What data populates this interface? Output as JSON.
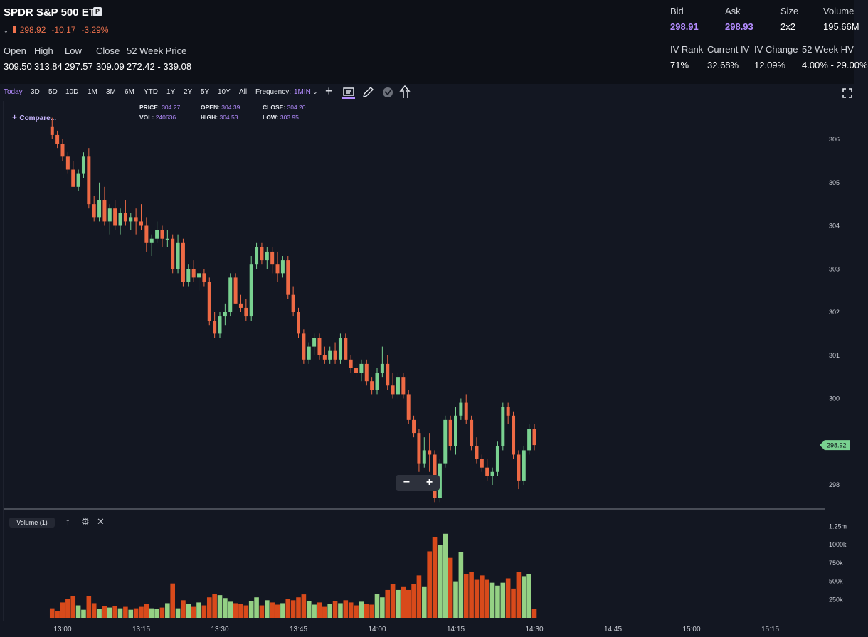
{
  "header": {
    "title": "SPDR S&P 500 ETF",
    "badge": "P",
    "last": "298.92",
    "change": "-10.17",
    "change_pct": "-3.29%",
    "stats": [
      {
        "label": "Open",
        "value": "309.50"
      },
      {
        "label": "High",
        "value": "313.84"
      },
      {
        "label": "Low",
        "value": "297.57"
      },
      {
        "label": "Close",
        "value": "309.09"
      },
      {
        "label": "52 Week Price",
        "value": "272.42 - 339.08"
      }
    ],
    "quote": [
      {
        "label": "Bid",
        "value": "298.91"
      },
      {
        "label": "Ask",
        "value": "298.93"
      },
      {
        "label": "Size",
        "value": "2x2"
      },
      {
        "label": "Volume",
        "value": "195.66M"
      }
    ],
    "iv": [
      {
        "label": "IV Rank",
        "value": "71%"
      },
      {
        "label": "Current IV",
        "value": "32.68%"
      },
      {
        "label": "IV Change",
        "value": "12.09%"
      },
      {
        "label": "52 Week HV",
        "value": "4.00% - 29.00%"
      }
    ]
  },
  "toolbar": {
    "ranges": [
      "Today",
      "3D",
      "5D",
      "10D",
      "1M",
      "3M",
      "6M",
      "YTD",
      "1Y",
      "2Y",
      "5Y",
      "10Y",
      "All"
    ],
    "active_range": "Today",
    "frequency_label": "Frequency:",
    "frequency_value": "1MIN",
    "icons": [
      "crosshair-icon",
      "chart-type-icon",
      "draw-pencil-icon",
      "indicator-icon",
      "share-icon",
      "fullscreen-icon"
    ]
  },
  "legend": {
    "compare": "Compare...",
    "price_label": "PRICE:",
    "price": "304.27",
    "open_label": "OPEN:",
    "open": "304.39",
    "close_label": "CLOSE:",
    "close": "304.20",
    "vol_label": "VOL:",
    "vol": "240636",
    "high_label": "HIGH:",
    "high": "304.53",
    "low_label": "LOW:",
    "low": "303.95"
  },
  "volume_panel": {
    "label": "Volume (1)"
  },
  "colors": {
    "up": "#79d190",
    "down": "#ee6a45",
    "vol_up": "#94d184",
    "vol_down": "#d84a1b",
    "accent": "#b48cff",
    "background": "#131722"
  },
  "chart_data": {
    "type": "candlestick",
    "symbol": "SPDR S&P 500 ETF",
    "interval": "1MIN",
    "last_price_label": "298.92",
    "price_axis": {
      "ticks": [
        306,
        305,
        304,
        303,
        302,
        301,
        300,
        298
      ],
      "range": [
        297.3,
        306.5
      ]
    },
    "volume_axis": {
      "ticks": [
        "1.25m",
        "1000k",
        "750k",
        "500k",
        "250k"
      ],
      "range": [
        0,
        1430000
      ]
    },
    "time_axis": {
      "ticks": [
        "13:00",
        "13:15",
        "13:30",
        "13:45",
        "14:00",
        "14:15",
        "14:30",
        "14:45",
        "15:00",
        "15:15"
      ],
      "start": "12:58",
      "end": "15:21"
    },
    "candles": [
      {
        "t": "12:58",
        "o": 306.3,
        "h": 306.5,
        "l": 306.0,
        "c": 306.1,
        "v": 130000
      },
      {
        "t": "12:59",
        "o": 306.1,
        "h": 306.2,
        "l": 305.8,
        "c": 305.9,
        "v": 90000
      },
      {
        "t": "13:00",
        "o": 305.9,
        "h": 306.0,
        "l": 305.5,
        "c": 305.6,
        "v": 210000
      },
      {
        "t": "13:01",
        "o": 305.6,
        "h": 305.7,
        "l": 305.2,
        "c": 305.3,
        "v": 260000
      },
      {
        "t": "13:02",
        "o": 305.3,
        "h": 305.5,
        "l": 304.9,
        "c": 304.9,
        "v": 300000
      },
      {
        "t": "13:03",
        "o": 304.9,
        "h": 305.3,
        "l": 304.8,
        "c": 305.2,
        "v": 170000
      },
      {
        "t": "13:04",
        "o": 305.2,
        "h": 305.7,
        "l": 305.1,
        "c": 305.6,
        "v": 110000
      },
      {
        "t": "13:05",
        "o": 305.6,
        "h": 305.8,
        "l": 304.4,
        "c": 304.5,
        "v": 300000
      },
      {
        "t": "13:06",
        "o": 304.5,
        "h": 304.7,
        "l": 304.1,
        "c": 304.2,
        "v": 200000
      },
      {
        "t": "13:07",
        "o": 304.2,
        "h": 305.0,
        "l": 304.1,
        "c": 304.6,
        "v": 120000
      },
      {
        "t": "13:08",
        "o": 304.6,
        "h": 304.9,
        "l": 304.0,
        "c": 304.1,
        "v": 160000
      },
      {
        "t": "13:09",
        "o": 304.1,
        "h": 304.5,
        "l": 303.8,
        "c": 304.4,
        "v": 140000
      },
      {
        "t": "13:10",
        "o": 304.4,
        "h": 304.6,
        "l": 303.9,
        "c": 304.0,
        "v": 160000
      },
      {
        "t": "13:11",
        "o": 304.0,
        "h": 304.4,
        "l": 303.8,
        "c": 304.3,
        "v": 130000
      },
      {
        "t": "13:12",
        "o": 304.3,
        "h": 304.6,
        "l": 304.0,
        "c": 304.1,
        "v": 150000
      },
      {
        "t": "13:13",
        "o": 304.1,
        "h": 304.3,
        "l": 303.9,
        "c": 304.2,
        "v": 110000
      },
      {
        "t": "13:14",
        "o": 304.2,
        "h": 304.4,
        "l": 303.8,
        "c": 304.1,
        "v": 130000
      },
      {
        "t": "13:15",
        "o": 304.1,
        "h": 304.5,
        "l": 303.9,
        "c": 304.0,
        "v": 150000
      },
      {
        "t": "13:16",
        "o": 304.0,
        "h": 304.2,
        "l": 303.4,
        "c": 303.6,
        "v": 190000
      },
      {
        "t": "13:17",
        "o": 303.6,
        "h": 303.8,
        "l": 303.3,
        "c": 303.7,
        "v": 130000
      },
      {
        "t": "13:18",
        "o": 303.7,
        "h": 304.1,
        "l": 303.6,
        "c": 303.9,
        "v": 120000
      },
      {
        "t": "13:19",
        "o": 303.9,
        "h": 304.0,
        "l": 303.5,
        "c": 303.7,
        "v": 140000
      },
      {
        "t": "13:20",
        "o": 303.7,
        "h": 303.9,
        "l": 303.5,
        "c": 303.7,
        "v": 200000
      },
      {
        "t": "13:21",
        "o": 303.7,
        "h": 303.8,
        "l": 302.9,
        "c": 303.0,
        "v": 470000
      },
      {
        "t": "13:22",
        "o": 303.0,
        "h": 303.8,
        "l": 302.9,
        "c": 303.6,
        "v": 130000
      },
      {
        "t": "13:23",
        "o": 303.6,
        "h": 303.7,
        "l": 302.6,
        "c": 302.7,
        "v": 240000
      },
      {
        "t": "13:24",
        "o": 302.7,
        "h": 303.1,
        "l": 302.6,
        "c": 303.0,
        "v": 190000
      },
      {
        "t": "13:25",
        "o": 303.0,
        "h": 303.2,
        "l": 302.7,
        "c": 302.8,
        "v": 150000
      },
      {
        "t": "13:26",
        "o": 302.8,
        "h": 302.9,
        "l": 302.5,
        "c": 302.9,
        "v": 210000
      },
      {
        "t": "13:27",
        "o": 302.9,
        "h": 303.0,
        "l": 302.6,
        "c": 302.7,
        "v": 170000
      },
      {
        "t": "13:28",
        "o": 302.7,
        "h": 302.8,
        "l": 301.7,
        "c": 301.8,
        "v": 280000
      },
      {
        "t": "13:29",
        "o": 301.8,
        "h": 302.0,
        "l": 301.4,
        "c": 301.5,
        "v": 330000
      },
      {
        "t": "13:30",
        "o": 301.5,
        "h": 302.0,
        "l": 301.4,
        "c": 301.9,
        "v": 310000
      },
      {
        "t": "13:31",
        "o": 301.9,
        "h": 302.2,
        "l": 301.7,
        "c": 302.0,
        "v": 270000
      },
      {
        "t": "13:32",
        "o": 302.0,
        "h": 302.9,
        "l": 301.9,
        "c": 302.8,
        "v": 220000
      },
      {
        "t": "13:33",
        "o": 302.8,
        "h": 302.9,
        "l": 302.2,
        "c": 302.2,
        "v": 200000
      },
      {
        "t": "13:34",
        "o": 302.2,
        "h": 302.4,
        "l": 302.0,
        "c": 302.1,
        "v": 190000
      },
      {
        "t": "13:35",
        "o": 302.1,
        "h": 302.3,
        "l": 301.8,
        "c": 301.9,
        "v": 170000
      },
      {
        "t": "13:36",
        "o": 301.9,
        "h": 303.3,
        "l": 301.8,
        "c": 303.1,
        "v": 230000
      },
      {
        "t": "13:37",
        "o": 303.1,
        "h": 303.6,
        "l": 303.0,
        "c": 303.5,
        "v": 280000
      },
      {
        "t": "13:38",
        "o": 303.5,
        "h": 303.6,
        "l": 303.1,
        "c": 303.2,
        "v": 170000
      },
      {
        "t": "13:39",
        "o": 303.2,
        "h": 303.5,
        "l": 303.0,
        "c": 303.4,
        "v": 240000
      },
      {
        "t": "13:40",
        "o": 303.4,
        "h": 303.5,
        "l": 302.9,
        "c": 303.1,
        "v": 210000
      },
      {
        "t": "13:41",
        "o": 303.1,
        "h": 303.4,
        "l": 302.7,
        "c": 302.9,
        "v": 180000
      },
      {
        "t": "13:42",
        "o": 302.9,
        "h": 303.3,
        "l": 302.8,
        "c": 303.2,
        "v": 200000
      },
      {
        "t": "13:43",
        "o": 303.2,
        "h": 303.3,
        "l": 302.3,
        "c": 302.4,
        "v": 260000
      },
      {
        "t": "13:44",
        "o": 302.4,
        "h": 302.6,
        "l": 301.9,
        "c": 302.0,
        "v": 240000
      },
      {
        "t": "13:45",
        "o": 302.0,
        "h": 302.1,
        "l": 301.4,
        "c": 301.5,
        "v": 280000
      },
      {
        "t": "13:46",
        "o": 301.5,
        "h": 301.6,
        "l": 300.8,
        "c": 300.9,
        "v": 320000
      },
      {
        "t": "13:47",
        "o": 300.9,
        "h": 301.3,
        "l": 300.8,
        "c": 301.2,
        "v": 230000
      },
      {
        "t": "13:48",
        "o": 301.2,
        "h": 301.5,
        "l": 301.0,
        "c": 301.4,
        "v": 180000
      },
      {
        "t": "13:49",
        "o": 301.4,
        "h": 301.5,
        "l": 300.9,
        "c": 301.0,
        "v": 210000
      },
      {
        "t": "13:50",
        "o": 301.0,
        "h": 301.2,
        "l": 300.8,
        "c": 300.9,
        "v": 150000
      },
      {
        "t": "13:51",
        "o": 300.9,
        "h": 301.2,
        "l": 300.8,
        "c": 301.1,
        "v": 190000
      },
      {
        "t": "13:52",
        "o": 301.1,
        "h": 301.3,
        "l": 300.8,
        "c": 300.9,
        "v": 230000
      },
      {
        "t": "13:53",
        "o": 300.9,
        "h": 301.5,
        "l": 300.8,
        "c": 301.4,
        "v": 200000
      },
      {
        "t": "13:54",
        "o": 301.4,
        "h": 301.5,
        "l": 300.9,
        "c": 300.9,
        "v": 240000
      },
      {
        "t": "13:55",
        "o": 300.9,
        "h": 301.0,
        "l": 300.6,
        "c": 300.7,
        "v": 210000
      },
      {
        "t": "13:56",
        "o": 300.7,
        "h": 300.8,
        "l": 300.5,
        "c": 300.6,
        "v": 170000
      },
      {
        "t": "13:57",
        "o": 300.6,
        "h": 300.9,
        "l": 300.4,
        "c": 300.8,
        "v": 220000
      },
      {
        "t": "13:58",
        "o": 300.8,
        "h": 300.9,
        "l": 300.3,
        "c": 300.4,
        "v": 190000
      },
      {
        "t": "13:59",
        "o": 300.4,
        "h": 300.5,
        "l": 300.1,
        "c": 300.2,
        "v": 180000
      },
      {
        "t": "14:00",
        "o": 300.2,
        "h": 300.7,
        "l": 300.1,
        "c": 300.6,
        "v": 330000
      },
      {
        "t": "14:01",
        "o": 300.6,
        "h": 301.2,
        "l": 300.5,
        "c": 300.8,
        "v": 280000
      },
      {
        "t": "14:02",
        "o": 300.8,
        "h": 301.0,
        "l": 300.2,
        "c": 300.3,
        "v": 380000
      },
      {
        "t": "14:03",
        "o": 300.3,
        "h": 300.6,
        "l": 300.0,
        "c": 300.1,
        "v": 460000
      },
      {
        "t": "14:04",
        "o": 300.1,
        "h": 300.6,
        "l": 300.0,
        "c": 300.5,
        "v": 380000
      },
      {
        "t": "14:05",
        "o": 300.5,
        "h": 300.6,
        "l": 300.0,
        "c": 300.1,
        "v": 430000
      },
      {
        "t": "14:06",
        "o": 300.1,
        "h": 300.2,
        "l": 299.4,
        "c": 299.5,
        "v": 380000
      },
      {
        "t": "14:07",
        "o": 299.5,
        "h": 299.6,
        "l": 299.1,
        "c": 299.2,
        "v": 460000
      },
      {
        "t": "14:08",
        "o": 299.2,
        "h": 299.3,
        "l": 298.3,
        "c": 298.5,
        "v": 580000
      },
      {
        "t": "14:09",
        "o": 298.5,
        "h": 299.1,
        "l": 298.4,
        "c": 298.8,
        "v": 430000
      },
      {
        "t": "14:10",
        "o": 298.8,
        "h": 299.2,
        "l": 298.3,
        "c": 298.7,
        "v": 910000
      },
      {
        "t": "14:11",
        "o": 298.7,
        "h": 298.8,
        "l": 297.6,
        "c": 297.7,
        "v": 1100000
      },
      {
        "t": "14:12",
        "o": 297.7,
        "h": 298.6,
        "l": 297.6,
        "c": 298.5,
        "v": 1000000
      },
      {
        "t": "14:13",
        "o": 298.5,
        "h": 299.6,
        "l": 298.4,
        "c": 299.5,
        "v": 1150000
      },
      {
        "t": "14:14",
        "o": 299.5,
        "h": 299.6,
        "l": 298.8,
        "c": 298.9,
        "v": 820000
      },
      {
        "t": "14:15",
        "o": 298.9,
        "h": 299.8,
        "l": 298.7,
        "c": 299.6,
        "v": 500000
      },
      {
        "t": "14:16",
        "o": 299.6,
        "h": 300.0,
        "l": 299.5,
        "c": 299.9,
        "v": 900000
      },
      {
        "t": "14:17",
        "o": 299.9,
        "h": 300.1,
        "l": 299.4,
        "c": 299.5,
        "v": 600000
      },
      {
        "t": "14:18",
        "o": 299.5,
        "h": 299.6,
        "l": 298.8,
        "c": 298.9,
        "v": 630000
      },
      {
        "t": "14:19",
        "o": 298.9,
        "h": 299.1,
        "l": 298.5,
        "c": 298.6,
        "v": 520000
      },
      {
        "t": "14:20",
        "o": 298.6,
        "h": 298.7,
        "l": 298.3,
        "c": 298.4,
        "v": 580000
      },
      {
        "t": "14:21",
        "o": 298.4,
        "h": 298.6,
        "l": 298.1,
        "c": 298.2,
        "v": 520000
      },
      {
        "t": "14:22",
        "o": 298.2,
        "h": 298.4,
        "l": 298.0,
        "c": 298.3,
        "v": 480000
      },
      {
        "t": "14:23",
        "o": 298.3,
        "h": 299.0,
        "l": 298.2,
        "c": 298.9,
        "v": 440000
      },
      {
        "t": "14:24",
        "o": 298.9,
        "h": 299.9,
        "l": 298.8,
        "c": 299.8,
        "v": 480000
      },
      {
        "t": "14:25",
        "o": 299.8,
        "h": 299.9,
        "l": 299.4,
        "c": 299.6,
        "v": 540000
      },
      {
        "t": "14:26",
        "o": 299.6,
        "h": 299.7,
        "l": 298.6,
        "c": 298.7,
        "v": 400000
      },
      {
        "t": "14:27",
        "o": 298.7,
        "h": 298.8,
        "l": 297.9,
        "c": 298.1,
        "v": 630000
      },
      {
        "t": "14:28",
        "o": 298.1,
        "h": 298.9,
        "l": 298.0,
        "c": 298.8,
        "v": 570000
      },
      {
        "t": "14:29",
        "o": 298.8,
        "h": 299.4,
        "l": 298.7,
        "c": 299.3,
        "v": 600000
      },
      {
        "t": "14:30",
        "o": 299.3,
        "h": 299.4,
        "l": 298.8,
        "c": 298.92,
        "v": 120000
      }
    ]
  }
}
